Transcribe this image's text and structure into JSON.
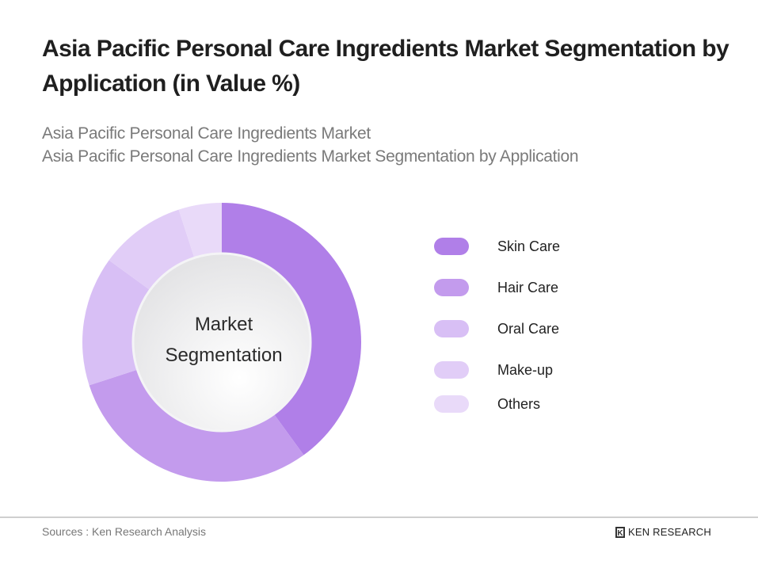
{
  "header": {
    "title": "Asia Pacific Personal Care Ingredients Market Segmentation by Application (in Value %)",
    "subtitle_line1": "Asia Pacific Personal Care Ingredients Market",
    "subtitle_line2": "Asia Pacific Personal Care Ingredients Market Segmentation by Application"
  },
  "center_label": {
    "line1": "Market",
    "line2": "Segmentation"
  },
  "legend": [
    {
      "label": "Skin Care",
      "color": "#b07fe8"
    },
    {
      "label": "Hair Care",
      "color": "#c39bed"
    },
    {
      "label": "Oral Care",
      "color": "#d8bff5"
    },
    {
      "label": "Make-up",
      "color": "#e1cdf7"
    },
    {
      "label": "Others",
      "color": "#e9daf9"
    }
  ],
  "footer": {
    "source": "Sources : Ken Research Analysis",
    "logo_text": "KEN RESEARCH",
    "logo_mark": "K"
  },
  "chart_data": {
    "type": "pie",
    "title": "Asia Pacific Personal Care Ingredients Market Segmentation by Application (in Value %)",
    "subtitle": "Asia Pacific Personal Care Ingredients Market Segmentation by Application",
    "center_text": "Market Segmentation",
    "donut": true,
    "categories": [
      "Skin Care",
      "Hair Care",
      "Oral Care",
      "Make-up",
      "Others"
    ],
    "values": [
      40,
      30,
      15,
      10,
      5
    ],
    "colors": [
      "#b07fe8",
      "#c39bed",
      "#d8bff5",
      "#e1cdf7",
      "#e9daf9"
    ],
    "legend_position": "right",
    "data_labels_shown": false
  }
}
